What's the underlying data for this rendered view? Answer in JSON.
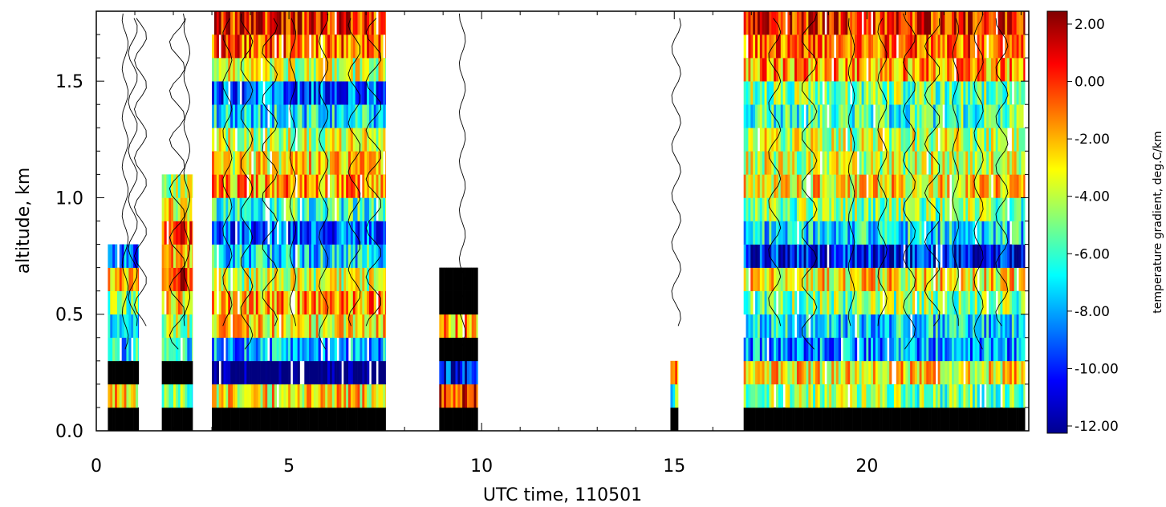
{
  "chart_data": {
    "type": "heatmap",
    "title": "",
    "xlabel": "UTC time, 110501",
    "ylabel": "altitude, km",
    "xlim": [
      0,
      24.2
    ],
    "ylim": [
      0,
      1.8
    ],
    "x_ticks": [
      {
        "value": 0,
        "label": "0"
      },
      {
        "value": 5,
        "label": "5"
      },
      {
        "value": 10,
        "label": "10"
      },
      {
        "value": 15,
        "label": "15"
      },
      {
        "value": 20,
        "label": "20"
      }
    ],
    "y_ticks": [
      {
        "value": 0.0,
        "label": "0.0"
      },
      {
        "value": 0.5,
        "label": "0.5"
      },
      {
        "value": 1.0,
        "label": "1.0"
      },
      {
        "value": 1.5,
        "label": "1.5"
      }
    ],
    "colorbar": {
      "label": "temperature gradient, deg.C/km",
      "range": [
        -12,
        2
      ],
      "ticks": [
        {
          "value": 2,
          "label": "2.00"
        },
        {
          "value": 0,
          "label": "0.00"
        },
        {
          "value": -2,
          "label": "-2.00"
        },
        {
          "value": -4,
          "label": "-4.00"
        },
        {
          "value": -6,
          "label": "-6.00"
        },
        {
          "value": -8,
          "label": "-8.00"
        },
        {
          "value": -10,
          "label": "-10.00"
        },
        {
          "value": -12,
          "label": "-12.00"
        }
      ],
      "colormap": "jet"
    },
    "altitude_bins_km": [
      0.05,
      0.15,
      0.25,
      0.35,
      0.45,
      0.55,
      0.65,
      0.75,
      0.85,
      0.95,
      1.05,
      1.15,
      1.25,
      1.35,
      1.45,
      1.55,
      1.65,
      1.75
    ],
    "data_segments": [
      {
        "t_start": 0.3,
        "t_end": 1.1,
        "z_top": 0.8,
        "mean_profile": [
          -14,
          -3,
          -14,
          -7,
          -7,
          -5,
          -2,
          -9,
          null,
          null,
          null,
          null,
          null,
          null,
          null,
          null,
          null,
          null
        ]
      },
      {
        "t_start": 1.7,
        "t_end": 2.5,
        "z_top": 1.1,
        "mean_profile": [
          -14,
          -5,
          -14,
          -7,
          -4,
          -3,
          0,
          -2,
          -1,
          -3,
          -4,
          null,
          null,
          null,
          null,
          null,
          null,
          null
        ]
      },
      {
        "t_start": 3.0,
        "t_end": 7.5,
        "z_top": 1.8,
        "mean_profile": [
          -14,
          -3,
          -13,
          -8,
          -3,
          -2,
          -4,
          -7,
          -9,
          -6,
          -2,
          -3,
          -4,
          -7,
          -9,
          -4,
          -1,
          0
        ]
      },
      {
        "t_start": 8.9,
        "t_end": 9.9,
        "z_top": 0.7,
        "mean_profile": [
          -14,
          0,
          -10,
          -14,
          -2,
          -14,
          -14,
          null,
          null,
          null,
          null,
          null,
          null,
          null,
          null,
          null,
          null,
          null
        ]
      },
      {
        "t_start": 14.9,
        "t_end": 15.1,
        "z_top": 0.25,
        "mean_profile": [
          -14,
          -6,
          -2,
          null,
          null,
          null,
          null,
          null,
          null,
          null,
          null,
          null,
          null,
          null,
          null,
          null,
          null,
          null
        ]
      },
      {
        "t_start": 16.8,
        "t_end": 24.1,
        "z_top": 1.8,
        "mean_profile": [
          -14,
          -5,
          -3,
          -8,
          -7,
          -5,
          -3,
          -10,
          -7,
          -5,
          -3,
          -4,
          -4,
          -6,
          -5,
          -2,
          -1,
          0
        ]
      }
    ],
    "contours": "thin black contour lines overlay at 0.3 to 1.8 km"
  }
}
